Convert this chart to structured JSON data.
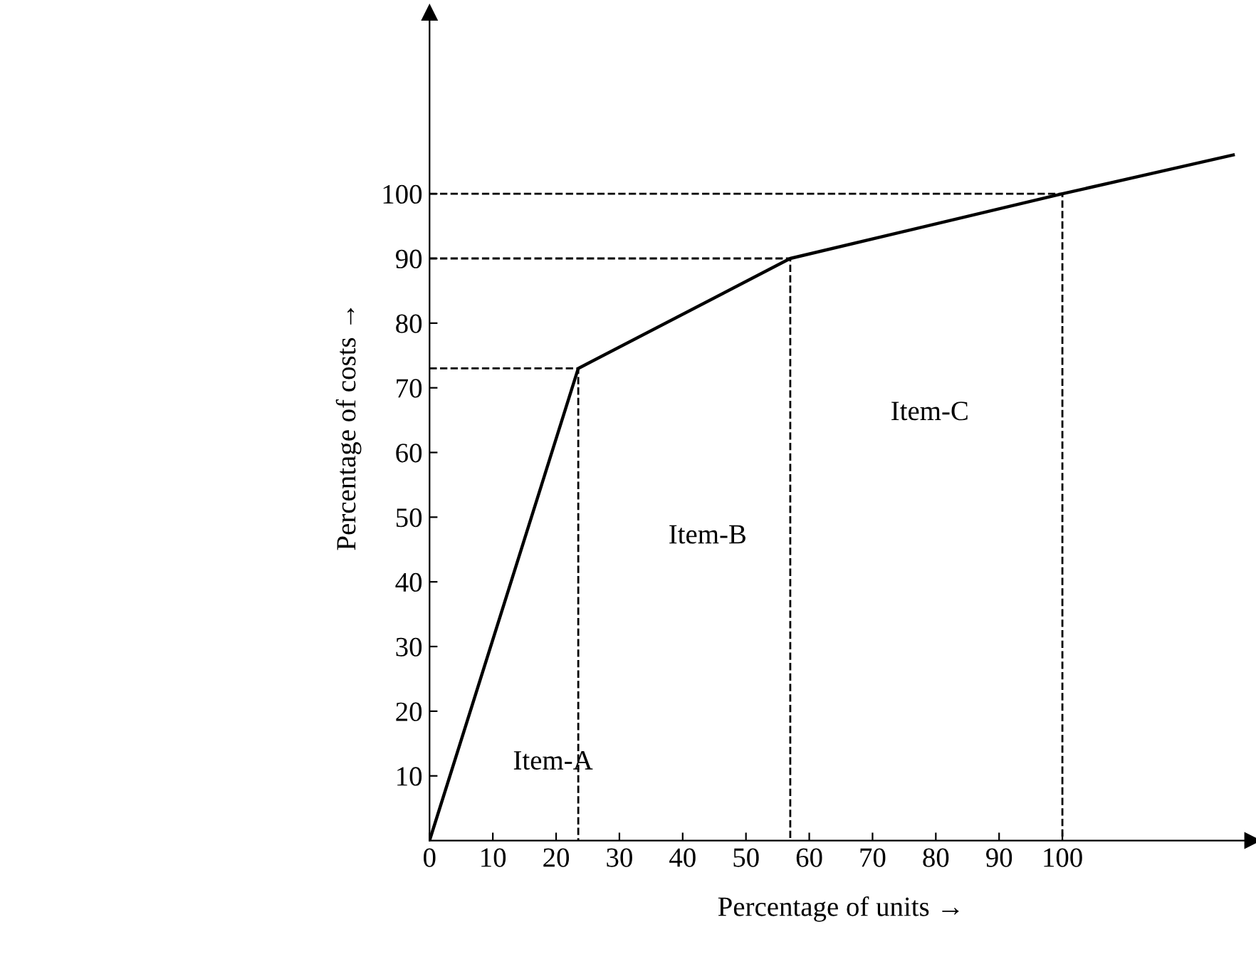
{
  "chart_data": {
    "type": "line",
    "xlabel": "Percentage of units →",
    "ylabel": "Percentage of costs →",
    "series": [
      {
        "color": "#000000",
        "x": [
          0,
          23.5,
          57,
          100,
          127
        ],
        "values": [
          0,
          73,
          90,
          100,
          106
        ]
      },
      {
        "color": "#000000",
        "line_style": "dashed",
        "x": [
          0,
          23.5,
          23.5
        ],
        "values": [
          73,
          73,
          0
        ]
      },
      {
        "color": "#000000",
        "line_style": "dashed",
        "x": [
          0,
          57,
          57
        ],
        "values": [
          90,
          90,
          0
        ]
      },
      {
        "color": "#000000",
        "line_style": "dashed",
        "x": [
          0,
          100,
          100
        ],
        "values": [
          100,
          100,
          0
        ]
      }
    ],
    "annotations": [
      "Item-A",
      "Item-B",
      "Item-C"
    ],
    "xlim": [
      0,
      130
    ],
    "ylim": [
      0,
      128
    ],
    "xticks": [
      0,
      10,
      20,
      30,
      40,
      50,
      60,
      70,
      80,
      90,
      100
    ],
    "yticks": [
      10,
      20,
      30,
      40,
      50,
      60,
      70,
      80,
      90,
      100
    ],
    "grid": false,
    "legend": false,
    "marker": "none",
    "line_style": "solid"
  }
}
